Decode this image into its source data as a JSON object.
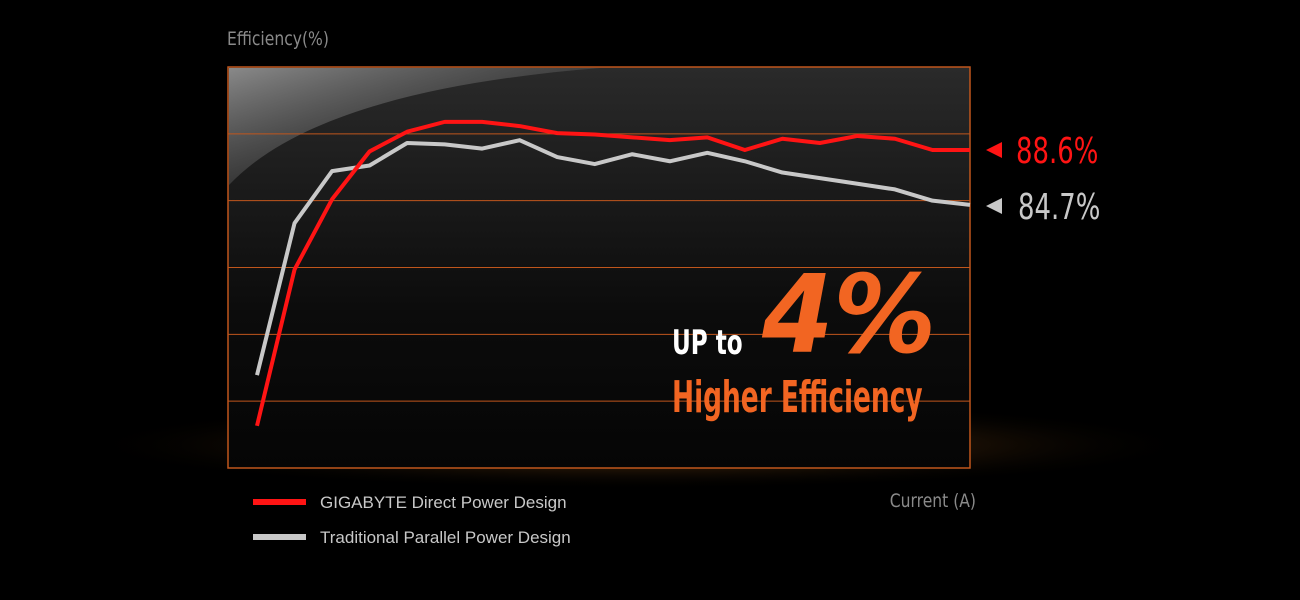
{
  "chart_data": {
    "type": "line",
    "ylabel": "Efficiency(%)",
    "xlabel": "Current (A)",
    "x": [
      0,
      1,
      2,
      3,
      4,
      5,
      6,
      7,
      8,
      9,
      10,
      11,
      12,
      13,
      14,
      15,
      16,
      17,
      18,
      19
    ],
    "ylim": [
      66,
      94.5
    ],
    "grid": true,
    "series": [
      {
        "name": "GIGABYTE Direct Power Design",
        "color": "#ff1414",
        "values": [
          69.0,
          80.1,
          85.1,
          88.5,
          89.9,
          90.6,
          90.6,
          90.3,
          89.8,
          89.7,
          89.5,
          89.3,
          89.5,
          88.6,
          89.4,
          89.1,
          89.6,
          89.4,
          88.6,
          88.6
        ],
        "end_label": "88.6%"
      },
      {
        "name": "Traditional Parallel Power Design",
        "color": "#c8c8c8",
        "values": [
          72.6,
          83.4,
          87.1,
          87.5,
          89.1,
          89.0,
          88.7,
          89.3,
          88.1,
          87.6,
          88.3,
          87.8,
          88.4,
          87.8,
          87.0,
          86.6,
          86.2,
          85.8,
          85.0,
          84.7
        ],
        "end_label": "84.7%"
      }
    ],
    "legend_position": "bottom-left",
    "annotation": {
      "prefix": "UP to",
      "big": "4%",
      "caption": "Higher Efficiency"
    },
    "accent_color": "#f26522",
    "grid_color": "#c0561c"
  }
}
